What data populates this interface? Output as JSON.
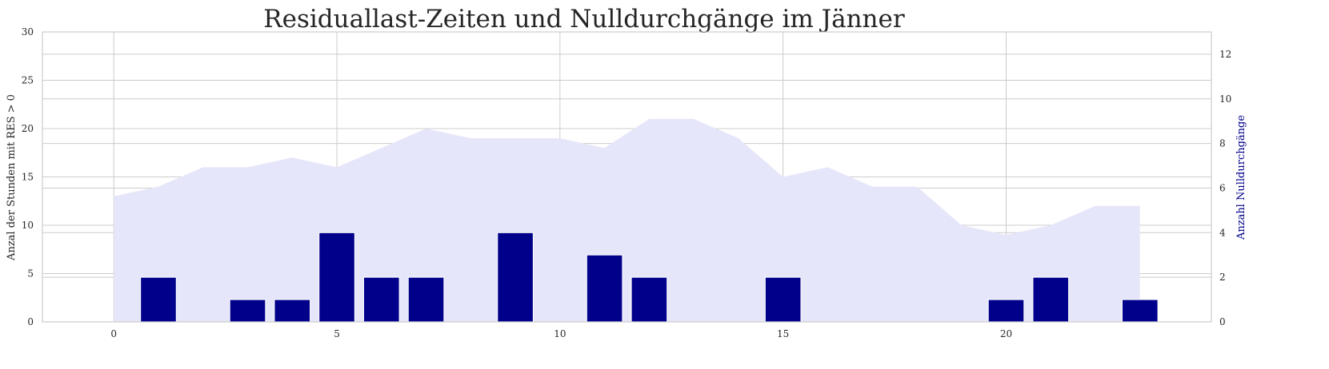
{
  "chart_data": {
    "type": "bar",
    "title": "Residuallast-Zeiten und Nulldurchgänge im Jänner",
    "x": [
      0,
      1,
      2,
      3,
      4,
      5,
      6,
      7,
      8,
      9,
      10,
      11,
      12,
      13,
      14,
      15,
      16,
      17,
      18,
      19,
      20,
      21,
      22,
      23
    ],
    "xlim": [
      -1.6,
      24.6
    ],
    "xticks": [
      0,
      5,
      10,
      15,
      20
    ],
    "ylabel_left": "Anzal der Stunden mit RES > 0",
    "ylabel_right": "Anzahl Nulldurchgänge",
    "ylim_left": [
      0,
      30
    ],
    "yticks_left": [
      0,
      5,
      10,
      15,
      20,
      25,
      30
    ],
    "ylim_right": [
      0,
      13
    ],
    "yticks_right": [
      0,
      2,
      4,
      6,
      8,
      10,
      12
    ],
    "series": [
      {
        "kind": "area",
        "axis": "left",
        "color": "#e6e6fa",
        "values": [
          13,
          14,
          16,
          16,
          17,
          16,
          18,
          20,
          19,
          19,
          19,
          18,
          21,
          21,
          19,
          15,
          16,
          14,
          14,
          10,
          9,
          10,
          12,
          12
        ]
      },
      {
        "kind": "bar",
        "axis": "right",
        "color": "#00008b",
        "values": [
          0,
          2,
          0,
          1,
          1,
          4,
          2,
          2,
          0,
          4,
          0,
          3,
          2,
          0,
          0,
          2,
          0,
          0,
          0,
          0,
          1,
          2,
          0,
          1
        ]
      }
    ],
    "colors": {
      "right_axis_label": "#00008b",
      "grid": "#cccccc"
    },
    "grid": true
  }
}
